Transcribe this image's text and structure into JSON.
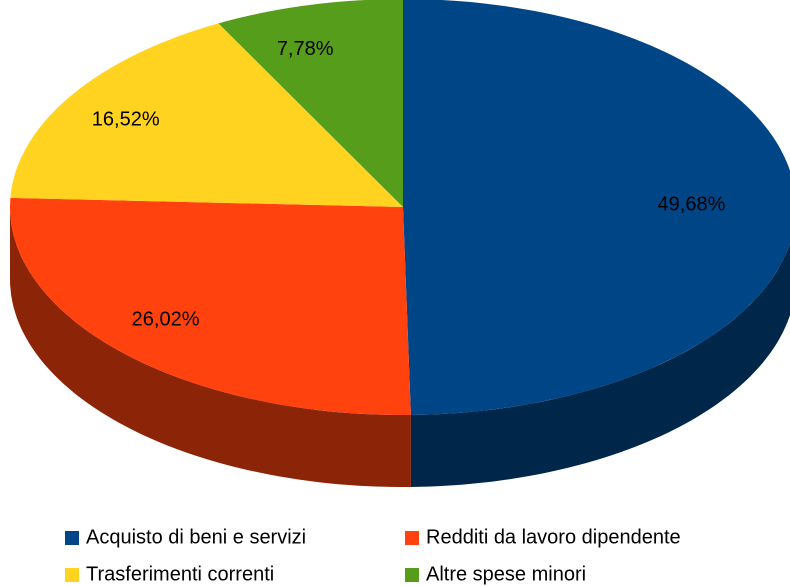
{
  "chart_data": {
    "type": "pie",
    "categories": [
      "Acquisto di beni e servizi",
      "Redditi da lavoro dipendente",
      "Trasferimenti correnti",
      "Altre spese minori"
    ],
    "values": [
      49.68,
      26.02,
      16.52,
      7.78
    ],
    "value_labels": [
      "49,68%",
      "26,02%",
      "16,52%",
      "7,78%"
    ],
    "colors": [
      "#004586",
      "#ff420e",
      "#ffd320",
      "#579d1c"
    ],
    "legend": "bottom"
  }
}
